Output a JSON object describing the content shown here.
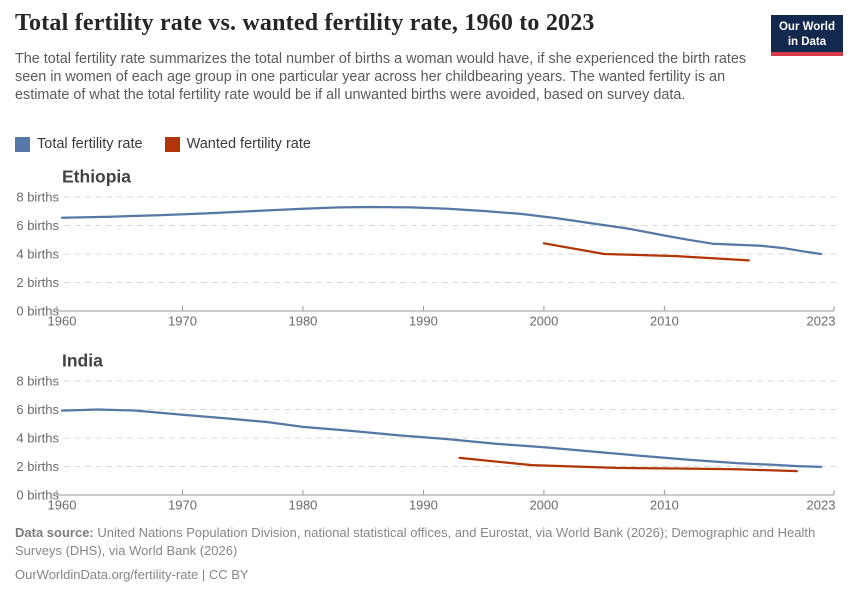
{
  "header": {
    "title": "Total fertility rate vs. wanted fertility rate, 1960 to 2023",
    "logo": {
      "line1": "Our World",
      "line2": "in Data"
    }
  },
  "subtitle": "The total fertility rate summarizes the total number of births a woman would have, if she experienced the birth rates seen in women of each age group in one particular year across her childbearing years. The wanted fertility is an estimate of what the total fertility rate would be if all unwanted births were avoided, based on survey data.",
  "legend": [
    {
      "label": "Total fertility rate",
      "color": "#5578a6"
    },
    {
      "label": "Wanted fertility rate",
      "color": "#b13507"
    }
  ],
  "colors": {
    "grid": "#d8d8d8",
    "axis": "#9a9a9a",
    "tick_label": "#6b6b6b",
    "panel_title": "#434343",
    "logo_bg": "#12294d",
    "logo_bar": "#d73a49"
  },
  "chart_data": [
    {
      "type": "line",
      "title": "Ethiopia",
      "xlabel": "",
      "ylabel": "",
      "xlim": [
        1960,
        2023
      ],
      "ylim": [
        0,
        8
      ],
      "x_ticks": [
        1960,
        1970,
        1980,
        1990,
        2000,
        2010,
        2023
      ],
      "y_ticks": [
        0,
        2,
        4,
        6,
        8
      ],
      "y_tick_suffix": " births",
      "grid": true,
      "legend_position": "top",
      "series": [
        {
          "name": "Total fertility rate",
          "color": "#5578a6",
          "x": [
            1960,
            1964,
            1968,
            1972,
            1976,
            1980,
            1983,
            1986,
            1989,
            1992,
            1995,
            1998,
            2001,
            2004,
            2007,
            2010,
            2012,
            2014,
            2016,
            2018,
            2020,
            2022,
            2023
          ],
          "y": [
            6.55,
            6.62,
            6.72,
            6.85,
            7.02,
            7.18,
            7.27,
            7.3,
            7.27,
            7.17,
            7.02,
            6.82,
            6.52,
            6.15,
            5.78,
            5.3,
            5.0,
            4.72,
            4.65,
            4.58,
            4.4,
            4.12,
            4.0
          ]
        },
        {
          "name": "Wanted fertility rate",
          "color": "#b13507",
          "x": [
            2000,
            2005,
            2011,
            2017
          ],
          "y": [
            4.75,
            4.0,
            3.85,
            3.55
          ]
        }
      ]
    },
    {
      "type": "line",
      "title": "India",
      "xlabel": "",
      "ylabel": "",
      "xlim": [
        1960,
        2023
      ],
      "ylim": [
        0,
        8
      ],
      "x_ticks": [
        1960,
        1970,
        1980,
        1990,
        2000,
        2010,
        2023
      ],
      "y_ticks": [
        0,
        2,
        4,
        6,
        8
      ],
      "y_tick_suffix": " births",
      "grid": true,
      "legend_position": "top",
      "series": [
        {
          "name": "Total fertility rate",
          "color": "#5578a6",
          "x": [
            1960,
            1963,
            1966,
            1970,
            1974,
            1977,
            1980,
            1984,
            1988,
            1992,
            1996,
            2000,
            2004,
            2008,
            2012,
            2016,
            2019,
            2021,
            2023
          ],
          "y": [
            5.92,
            6.0,
            5.93,
            5.63,
            5.35,
            5.12,
            4.78,
            4.5,
            4.18,
            3.92,
            3.6,
            3.35,
            3.05,
            2.75,
            2.48,
            2.24,
            2.12,
            2.03,
            1.97
          ]
        },
        {
          "name": "Wanted fertility rate",
          "color": "#b13507",
          "x": [
            1993,
            1999,
            2006,
            2011,
            2016,
            2021
          ],
          "y": [
            2.6,
            2.1,
            1.9,
            1.86,
            1.8,
            1.68
          ]
        }
      ]
    }
  ],
  "footer": {
    "source_label": "Data source:",
    "source_text": "United Nations Population Division, national statistical offices, and Eurostat, via World Bank (2026); Demographic and Health Surveys (DHS), via World Bank (2026)",
    "credit": "OurWorldinData.org/fertility-rate | CC BY"
  }
}
